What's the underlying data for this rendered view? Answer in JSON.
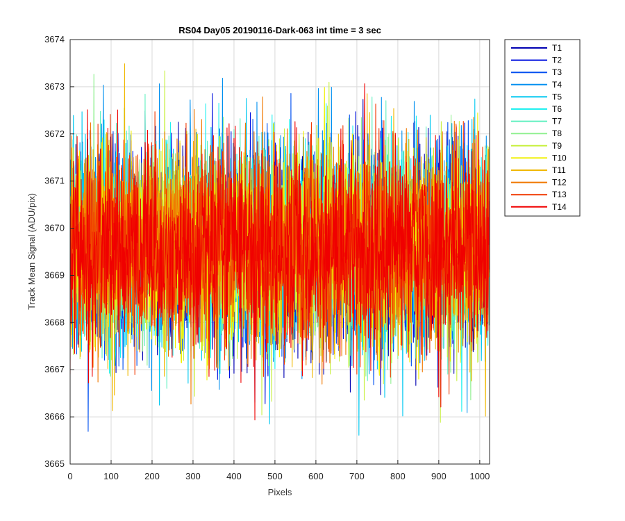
{
  "chart_data": {
    "type": "line",
    "title": "RS04 Day05 20190116-Dark-063 int time = 3 sec",
    "xlabel": "Pixels",
    "ylabel": "Track Mean Signal (ADU/pix)",
    "xlim": [
      0,
      1024
    ],
    "ylim": [
      3665,
      3674
    ],
    "xticks": [
      "0",
      "100",
      "200",
      "300",
      "400",
      "500",
      "600",
      "700",
      "800",
      "900",
      "1000"
    ],
    "yticks": [
      "3665",
      "3666",
      "3667",
      "3668",
      "3669",
      "3670",
      "3671",
      "3672",
      "3673",
      "3674"
    ],
    "grid": true,
    "legend_position": "outside-top-right",
    "n_points": 1024,
    "mean_level": 3669.6,
    "std_dev": 1.1,
    "series": [
      {
        "name": "T1",
        "color": "#0000B2"
      },
      {
        "name": "T2",
        "color": "#0010DF"
      },
      {
        "name": "T3",
        "color": "#0050F0"
      },
      {
        "name": "T4",
        "color": "#0090F0"
      },
      {
        "name": "T5",
        "color": "#00C8F0"
      },
      {
        "name": "T6",
        "color": "#20F0F0"
      },
      {
        "name": "T7",
        "color": "#60F0C0"
      },
      {
        "name": "T8",
        "color": "#90F090"
      },
      {
        "name": "T9",
        "color": "#C8F040"
      },
      {
        "name": "T10",
        "color": "#F0F000"
      },
      {
        "name": "T11",
        "color": "#F0B800"
      },
      {
        "name": "T12",
        "color": "#F07800"
      },
      {
        "name": "T13",
        "color": "#F03800"
      },
      {
        "name": "T14",
        "color": "#F00000"
      }
    ]
  }
}
